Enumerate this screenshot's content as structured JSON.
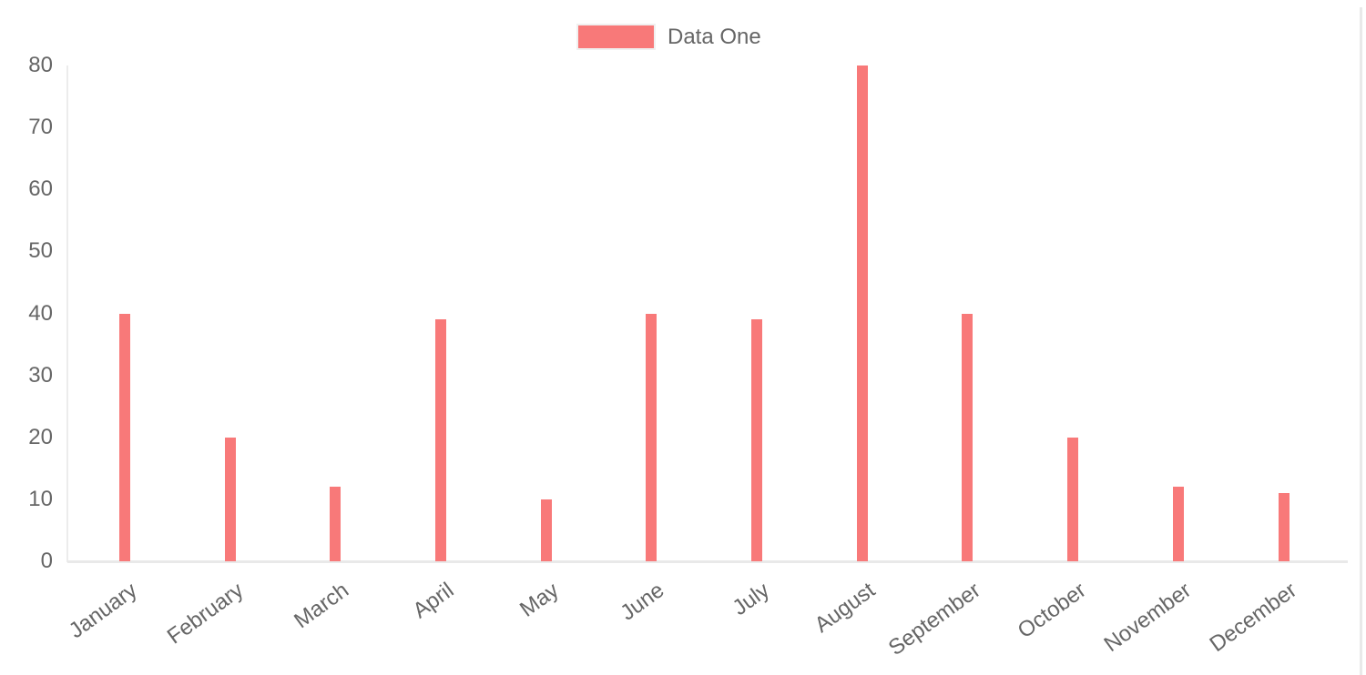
{
  "chart": {
    "background": "#ffffff",
    "text_color": "#666666",
    "axis_line_color": "#e9e9e9"
  },
  "legend": {
    "label": "Data One",
    "swatch_color": "#f87979"
  },
  "chart_data": {
    "type": "bar",
    "title": "",
    "categories": [
      "January",
      "February",
      "March",
      "April",
      "May",
      "June",
      "July",
      "August",
      "September",
      "October",
      "November",
      "December"
    ],
    "series": [
      {
        "name": "Data One",
        "color": "#f87979",
        "values": [
          40,
          20,
          12,
          39,
          10,
          40,
          39,
          80,
          40,
          20,
          12,
          11
        ]
      }
    ],
    "xlabel": "",
    "ylabel": "",
    "ylim": [
      0,
      80
    ],
    "yticks": [
      0,
      10,
      20,
      30,
      40,
      50,
      60,
      70,
      80
    ],
    "grid": false,
    "legend_position": "top",
    "x_tick_rotation_deg": -36
  },
  "scrollbar": {
    "color": "#e9e9e9"
  }
}
